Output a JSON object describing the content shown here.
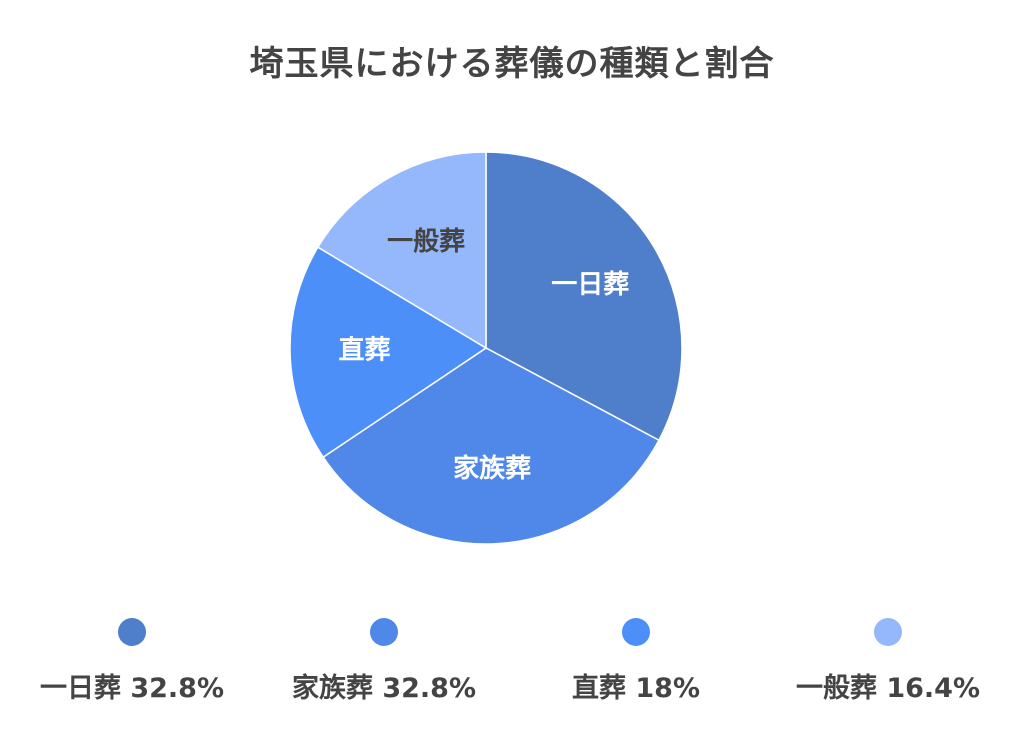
{
  "chart_data": {
    "type": "pie",
    "title": "埼玉県における葬儀の種類と割合",
    "slices": [
      {
        "label": "一日葬",
        "value": 32.8,
        "legend": "一日葬 32.8%",
        "color": "#4f7fcb",
        "label_color": "#ffffff"
      },
      {
        "label": "家族葬",
        "value": 32.8,
        "legend": "家族葬 32.8%",
        "color": "#4f88e8",
        "label_color": "#ffffff"
      },
      {
        "label": "直葬",
        "value": 18,
        "legend": "直葬 18%",
        "color": "#4c8ff8",
        "label_color": "#ffffff"
      },
      {
        "label": "一般葬",
        "value": 16.4,
        "legend": "一般葬 16.4%",
        "color": "#94b8fb",
        "label_color": "#444444"
      }
    ],
    "start": "top",
    "direction": "clockwise",
    "legend_position": "bottom"
  }
}
